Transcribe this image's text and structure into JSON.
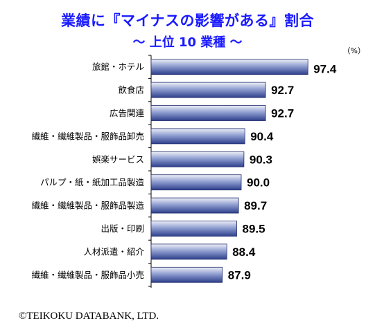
{
  "chart_data": {
    "type": "bar",
    "orientation": "horizontal",
    "title": "業績に『マイナスの影響がある』割合",
    "subtitle": "～ 上位 10 業種 ～",
    "unit": "（%）",
    "categories": [
      "旅館・ホテル",
      "飲食店",
      "広告関連",
      "繊維・繊維製品・服飾品卸売",
      "娯楽サービス",
      "パルプ・紙・紙加工品製造",
      "繊維・繊維製品・服飾品製造",
      "出版・印刷",
      "人材派遣・紹介",
      "繊維・繊維製品・服飾品小売"
    ],
    "values": [
      97.4,
      92.7,
      92.7,
      90.4,
      90.3,
      90.0,
      89.7,
      89.5,
      88.4,
      87.9
    ],
    "value_labels": [
      "97.4",
      "92.7",
      "92.7",
      "90.4",
      "90.3",
      "90.0",
      "89.7",
      "89.5",
      "88.4",
      "87.9"
    ],
    "xlim": [
      80,
      100
    ],
    "grid": false,
    "colors": {
      "bar_top": "#eef0f8",
      "bar_mid": "#8f9ed0",
      "bar_bottom": "#2e3f8c",
      "bar_edge": "#1e2a6a",
      "axis": "#000000",
      "title": "#1a1aff"
    }
  },
  "footer": "©TEIKOKU DATABANK, LTD."
}
